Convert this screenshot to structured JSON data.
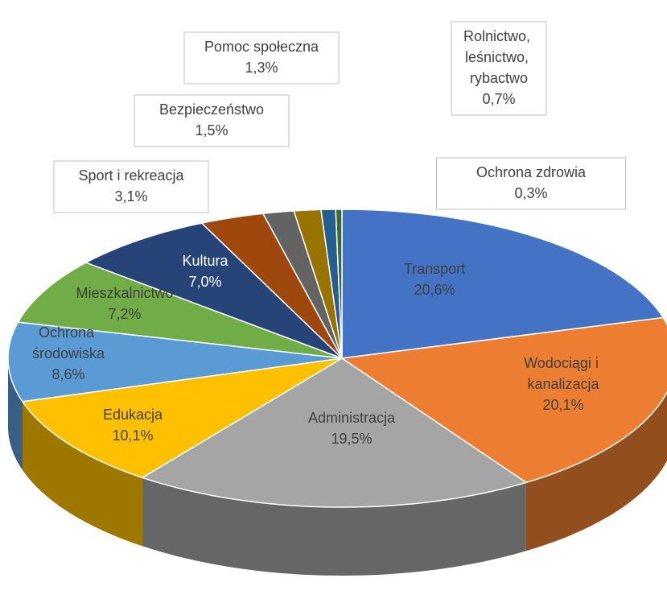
{
  "chart_data": {
    "type": "pie3d",
    "categories": [
      "Transport",
      "Wodociągi i kanalizacja",
      "Administracja",
      "Edukacja",
      "Ochrona środowiska",
      "Mieszkalnictwo",
      "Kultura",
      "Sport i rekreacja",
      "Bezpieczeństwo",
      "Pomoc społeczna",
      "Rolnictwo, leśnictwo, rybactwo",
      "Ochrona zdrowia"
    ],
    "values": [
      20.6,
      20.1,
      19.5,
      10.1,
      8.6,
      7.2,
      7.0,
      3.1,
      1.5,
      1.3,
      0.7,
      0.3
    ],
    "value_labels": [
      "20,6%",
      "20,1%",
      "19,5%",
      "10,1%",
      "8,6%",
      "7,2%",
      "7,0%",
      "3,1%",
      "1,5%",
      "1,3%",
      "0,7%",
      "0,3%"
    ],
    "colors": [
      "#4472c4",
      "#ed7d31",
      "#a5a5a5",
      "#ffc000",
      "#5b9bd5",
      "#70ad47",
      "#264478",
      "#9e480e",
      "#636363",
      "#997300",
      "#255e91",
      "#43682b"
    ]
  }
}
